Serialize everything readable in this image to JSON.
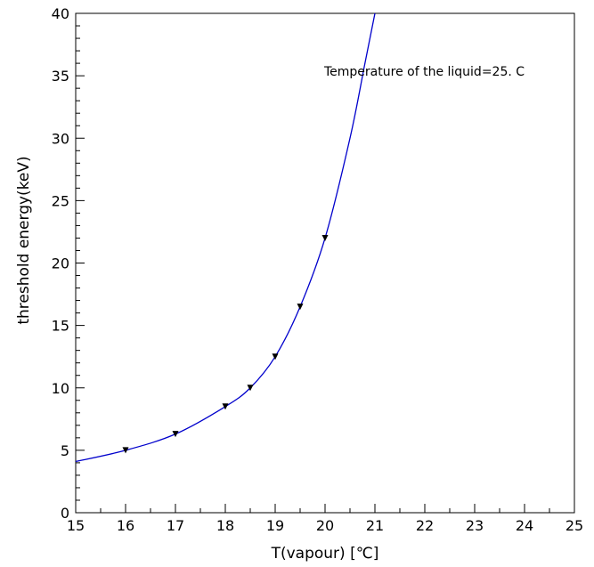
{
  "chart_data": {
    "type": "line",
    "xlabel": "T(vapour) [℃]",
    "ylabel": "threshold energy(keV)",
    "annotation": "Temperature of the liquid=25. C",
    "xlim": [
      15,
      25
    ],
    "ylim": [
      0,
      40
    ],
    "x_ticks": [
      15,
      16,
      17,
      18,
      19,
      20,
      21,
      22,
      23,
      24,
      25
    ],
    "y_ticks": [
      0,
      5,
      10,
      15,
      20,
      25,
      30,
      35,
      40
    ],
    "grid": false,
    "series": [
      {
        "color": "#0000cc",
        "marker": "triangle-down",
        "x": [
          16,
          17,
          18,
          18.5,
          19,
          19.5,
          20
        ],
        "y": [
          5,
          6.3,
          8.5,
          10,
          12.5,
          16.5,
          22
        ]
      }
    ],
    "fit_curve": {
      "color": "#0000cc",
      "x": [
        15,
        16,
        17,
        18,
        18.5,
        19,
        19.5,
        20,
        20.5,
        20.8,
        21
      ],
      "y": [
        4.1,
        5,
        6.3,
        8.5,
        10,
        12.5,
        16.5,
        22,
        30,
        36,
        40
      ]
    }
  }
}
